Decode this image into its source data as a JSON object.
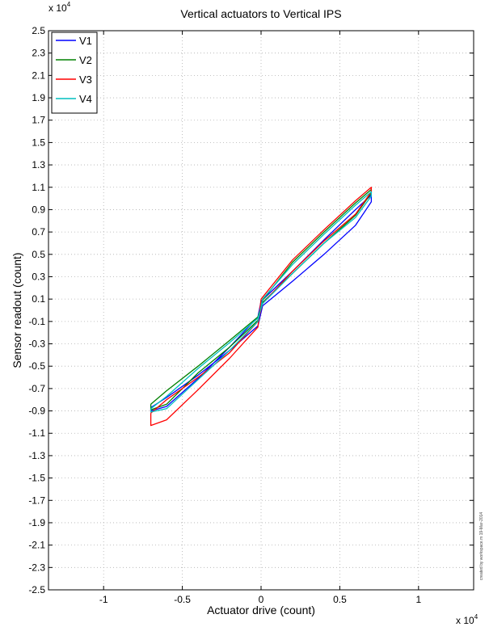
{
  "chart_data": {
    "type": "line",
    "title": "Vertical actuators to Vertical IPS",
    "xlabel": "Actuator drive (count)",
    "ylabel": "Sensor readout (count)",
    "x_multiplier": "x 10",
    "y_multiplier": "x 10",
    "multiplier_exponent": "4",
    "xlim": [
      -13500,
      13500
    ],
    "ylim": [
      -25000,
      25000
    ],
    "xticks": [
      -10000,
      -5000,
      0,
      5000,
      10000
    ],
    "xtick_labels": [
      "-1",
      "-0.5",
      "0",
      "0.5",
      "1"
    ],
    "yticks": [
      25000,
      23000,
      21000,
      19000,
      17000,
      15000,
      13000,
      11000,
      9000,
      7000,
      5000,
      3000,
      1000,
      -1000,
      -3000,
      -5000,
      -7000,
      -9000,
      -11000,
      -13000,
      -15000,
      -17000,
      -19000,
      -21000,
      -23000,
      -25000
    ],
    "ytick_labels": [
      "2.5",
      "2.3",
      "2.1",
      "1.9",
      "1.7",
      "1.5",
      "1.3",
      "1.1",
      "0.9",
      "0.7",
      "0.5",
      "0.3",
      "0.1",
      "-0.1",
      "-0.3",
      "-0.5",
      "-0.7",
      "-0.9",
      "-1.1",
      "-1.3",
      "-1.5",
      "-1.7",
      "-1.9",
      "-2.1",
      "-2.3",
      "-2.5"
    ],
    "grid": true,
    "legend_position": "top-left",
    "footnote": "created by workspace.m 19-Mar-2014",
    "series": [
      {
        "name": "V1",
        "color": "#0000ff",
        "x": [
          -7000,
          -6000,
          -4000,
          -2000,
          -200,
          100,
          2000,
          4000,
          6000,
          7000,
          7000,
          6000,
          4000,
          2000,
          0,
          -200,
          -2000,
          -4000,
          -6000,
          -7000
        ],
        "y": [
          -8700,
          -7800,
          -5800,
          -3600,
          -1400,
          400,
          2600,
          5000,
          7600,
          9700,
          10300,
          9000,
          6300,
          3500,
          800,
          -600,
          -3300,
          -6100,
          -8600,
          -9000
        ]
      },
      {
        "name": "V2",
        "color": "#008000",
        "x": [
          -7000,
          -6000,
          -4000,
          -2000,
          -200,
          100,
          2000,
          4000,
          6000,
          7000,
          7000,
          6000,
          4000,
          2000,
          100,
          -200,
          -2000,
          -4000,
          -6000,
          -7000
        ],
        "y": [
          -8400,
          -7200,
          -5000,
          -2700,
          -600,
          700,
          3300,
          6000,
          8500,
          10500,
          10800,
          9600,
          7000,
          4300,
          900,
          -900,
          -3300,
          -5600,
          -8400,
          -8900
        ]
      },
      {
        "name": "V3",
        "color": "#ff0000",
        "x": [
          -7000,
          -6000,
          -4000,
          -2000,
          -200,
          100,
          2000,
          4000,
          6000,
          7000,
          7000,
          6000,
          4000,
          2000,
          0,
          -200,
          -2000,
          -4000,
          -6000,
          -7000
        ],
        "y": [
          -9200,
          -8000,
          -6000,
          -3800,
          -1000,
          600,
          3500,
          6200,
          8600,
          10600,
          11000,
          9800,
          7200,
          4500,
          1000,
          -1500,
          -4300,
          -7100,
          -9800,
          -10300
        ]
      },
      {
        "name": "V4",
        "color": "#00bfbf",
        "x": [
          -7000,
          -6000,
          -4000,
          -2000,
          -200,
          100,
          2000,
          4000,
          6000,
          7000,
          7000,
          6000,
          4000,
          2000,
          100,
          -200,
          -2000,
          -4000,
          -6000,
          -7000
        ],
        "y": [
          -8800,
          -7700,
          -5200,
          -2900,
          -700,
          600,
          3300,
          6000,
          8300,
          10200,
          10600,
          9400,
          6800,
          4100,
          1000,
          -1000,
          -3600,
          -6200,
          -8800,
          -9100
        ]
      }
    ]
  }
}
